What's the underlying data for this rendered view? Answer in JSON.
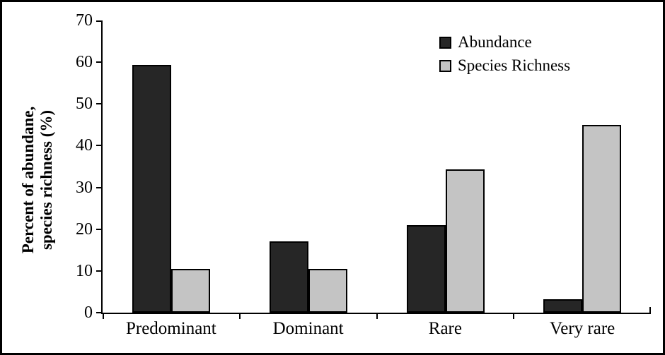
{
  "chart_data": {
    "type": "bar",
    "title": "",
    "categories": [
      "Predominant",
      "Dominant",
      "Rare",
      "Very rare"
    ],
    "series": [
      {
        "name": "Abundance",
        "color": "#262626",
        "values": [
          59.3,
          17.0,
          21.0,
          3.2
        ]
      },
      {
        "name": "Species Richness",
        "color": "#c4c4c4",
        "values": [
          10.5,
          10.5,
          34.3,
          44.9
        ]
      }
    ],
    "ylabel_lines": [
      "Percent of abundane,",
      "species richness (%)"
    ],
    "ylim": [
      0,
      70
    ],
    "yticks": [
      0,
      10,
      20,
      30,
      40,
      50,
      60,
      70
    ],
    "xlabel": "",
    "grid": false,
    "legend_position": "top-right",
    "axis_color": "#000000",
    "background_color": "#ffffff",
    "bar_outline_color": "#000000"
  }
}
